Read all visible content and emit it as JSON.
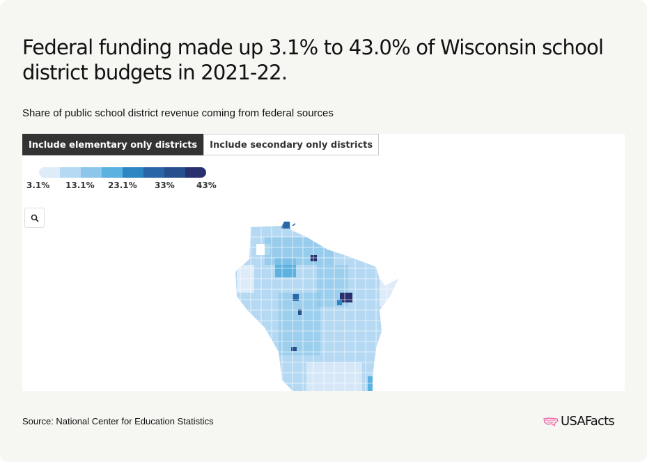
{
  "title": "Federal funding made up 3.1% to 43.0% of Wisconsin school district budgets in 2021-22.",
  "subtitle": "Share of public school district revenue coming from federal sources",
  "tabs": [
    {
      "label": "Include elementary only districts",
      "active": true
    },
    {
      "label": "Include secondary only districts",
      "active": false
    }
  ],
  "legend": {
    "colors": [
      "#deebf9",
      "#b5d9f3",
      "#8cc6ea",
      "#5bb1e0",
      "#2b86c2",
      "#2966a7",
      "#284f8d",
      "#29306f"
    ],
    "labels": [
      "3.1%",
      "13.1%",
      "23.1%",
      "33%",
      "43%"
    ]
  },
  "map": {
    "state": "Wisconsin",
    "zoom_icon": "search-icon"
  },
  "source": "Source: National Center for Education Statistics",
  "brand": "USAFacts",
  "brand_color": "#ef5ba1"
}
